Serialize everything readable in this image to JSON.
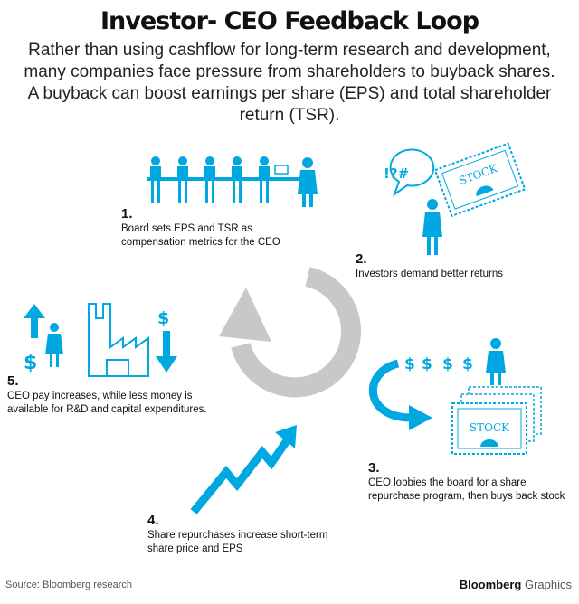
{
  "header": {
    "title": "Investor- CEO Feedback Loop",
    "subtitle": "Rather than using cashflow for long-term research and development, many companies face pressure from shareholders to buyback shares.  A buyback can boost earnings per share (EPS) and total shareholder return (TSR)."
  },
  "steps": [
    {
      "number": "1.",
      "text": "Board sets EPS and TSR as compensation metrics for the CEO"
    },
    {
      "number": "2.",
      "text": "Investors demand better returns"
    },
    {
      "number": "3.",
      "text": "CEO lobbies the board for a share repurchase program, then buys back stock"
    },
    {
      "number": "4.",
      "text": "Share repurchases increase short-term share price and EPS"
    },
    {
      "number": "5.",
      "text": "CEO pay increases, while less money is available for R&D and capital expenditures."
    }
  ],
  "art": {
    "stock_label": "STOCK",
    "speech_text": "!?#",
    "dollar_sign": "$"
  },
  "colors": {
    "accent": "#00a8e1",
    "loop_arrow": "#c8c8c8",
    "text": "#111111"
  },
  "footer": {
    "source": "Source: Bloomberg research",
    "brand_bold": "Bloomberg",
    "brand_light": "Graphics"
  }
}
